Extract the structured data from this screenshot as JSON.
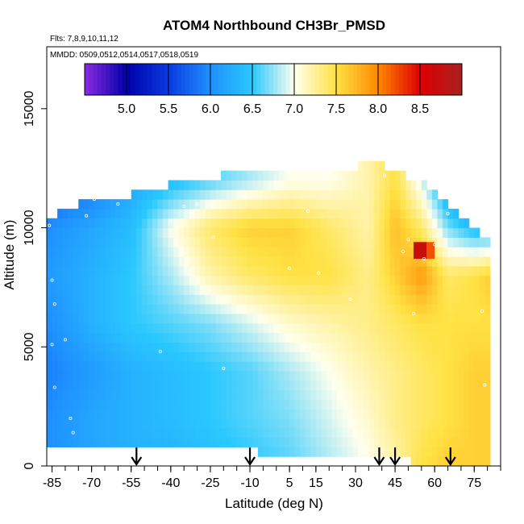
{
  "chart_data": {
    "type": "heatmap",
    "title": "ATOM4 Northbound CH3Br_PMSD",
    "subtitle_flights": "Flts: 7,8,9,10,11,12",
    "subtitle_dates": "MMDD: 0509,0512,0514,0517,0518,0519",
    "xlabel": "Latitude (deg N)",
    "ylabel": "Altitude (m)",
    "xlim": [
      -87,
      85
    ],
    "ylim": [
      0,
      17600
    ],
    "x_ticks": [
      -85,
      -70,
      -55,
      -40,
      -25,
      -10,
      5,
      15,
      30,
      45,
      60,
      75
    ],
    "y_ticks": [
      0,
      5000,
      10000,
      15000
    ],
    "colorbar": {
      "range": [
        4.5,
        9.0
      ],
      "tick_values": [
        5.0,
        5.5,
        6.0,
        6.5,
        7.0,
        7.5,
        8.0,
        8.5
      ],
      "tick_labels": [
        "5.0",
        "5.5",
        "6.0",
        "6.5",
        "7.0",
        "7.5",
        "8.0",
        "8.5"
      ],
      "stops": [
        {
          "v": 4.5,
          "color": "#8a2be2"
        },
        {
          "v": 5.0,
          "color": "#0000a8"
        },
        {
          "v": 5.5,
          "color": "#0a3ae0"
        },
        {
          "v": 6.0,
          "color": "#1f90ff"
        },
        {
          "v": 6.5,
          "color": "#2ac8ff"
        },
        {
          "v": 7.0,
          "color": "#ffffee"
        },
        {
          "v": 7.5,
          "color": "#ffe244"
        },
        {
          "v": 8.0,
          "color": "#ff8800"
        },
        {
          "v": 8.5,
          "color": "#dd0000"
        },
        {
          "v": 9.0,
          "color": "#a82020"
        }
      ]
    },
    "coverage": [
      {
        "lat": -86,
        "bottom": 1000,
        "top": 10400
      },
      {
        "lat": -75,
        "bottom": 1000,
        "top": 11000
      },
      {
        "lat": -65,
        "bottom": 1000,
        "top": 11300
      },
      {
        "lat": -55,
        "bottom": 1000,
        "top": 11400
      },
      {
        "lat": -45,
        "bottom": 1000,
        "top": 11700
      },
      {
        "lat": -35,
        "bottom": 1000,
        "top": 11900
      },
      {
        "lat": -25,
        "bottom": 1000,
        "top": 11900
      },
      {
        "lat": -15,
        "bottom": 1000,
        "top": 12500
      },
      {
        "lat": -5,
        "bottom": 500,
        "top": 12500
      },
      {
        "lat": 5,
        "bottom": 500,
        "top": 12500
      },
      {
        "lat": 15,
        "bottom": 500,
        "top": 12500
      },
      {
        "lat": 25,
        "bottom": 500,
        "top": 12200
      },
      {
        "lat": 35,
        "bottom": 400,
        "top": 12900
      },
      {
        "lat": 45,
        "bottom": 400,
        "top": 12300
      },
      {
        "lat": 55,
        "bottom": 100,
        "top": 12000
      },
      {
        "lat": 65,
        "bottom": 100,
        "top": 11100
      },
      {
        "lat": 72,
        "bottom": 100,
        "top": 10300
      },
      {
        "lat": 77,
        "bottom": 100,
        "top": 9700
      },
      {
        "lat": 80,
        "bottom": 100,
        "top": 9400
      }
    ],
    "field_nodes": {
      "alts": [
        0,
        2000,
        4000,
        6000,
        8000,
        10000,
        12000
      ],
      "lats": [
        -86,
        -70,
        -55,
        -40,
        -25,
        -10,
        5,
        20,
        35,
        45,
        55,
        65,
        75,
        80
      ],
      "values": [
        [
          6.0,
          6.2,
          6.3,
          6.3,
          6.4,
          6.5,
          6.6,
          6.8,
          7.0,
          7.2,
          7.5,
          7.6,
          7.6,
          7.6
        ],
        [
          6.0,
          6.2,
          6.3,
          6.4,
          6.5,
          6.6,
          6.7,
          6.9,
          7.1,
          7.3,
          7.4,
          7.5,
          7.6,
          7.6
        ],
        [
          5.9,
          6.1,
          6.3,
          6.4,
          6.5,
          6.6,
          6.8,
          7.0,
          7.2,
          7.3,
          7.4,
          7.5,
          7.6,
          7.6
        ],
        [
          6.0,
          6.3,
          6.5,
          6.6,
          6.7,
          6.9,
          7.1,
          7.2,
          7.3,
          7.4,
          7.5,
          7.5,
          7.5,
          7.5
        ],
        [
          6.1,
          6.3,
          6.5,
          6.8,
          7.2,
          7.4,
          7.5,
          7.5,
          7.3,
          7.6,
          7.9,
          7.4,
          7.5,
          7.6
        ],
        [
          6.0,
          6.2,
          6.4,
          7.0,
          7.4,
          7.6,
          7.6,
          7.4,
          7.2,
          7.7,
          7.4,
          6.7,
          6.4,
          6.4
        ],
        [
          5.6,
          5.8,
          6.2,
          6.4,
          6.6,
          6.8,
          7.0,
          7.0,
          7.2,
          7.5,
          6.9,
          6.1,
          5.5,
          5.5
        ]
      ]
    },
    "highlights": [
      {
        "lat_min": 52,
        "lat_max": 57,
        "alt_min": 8700,
        "alt_max": 9400,
        "value": 8.7
      },
      {
        "lat_min": 57,
        "lat_max": 60,
        "alt_min": 8700,
        "alt_max": 9400,
        "value": 8.2
      }
    ],
    "sample_points": [
      {
        "lat": -86,
        "alt": 10100
      },
      {
        "lat": -85,
        "alt": 7800
      },
      {
        "lat": -84,
        "alt": 6800
      },
      {
        "lat": -85,
        "alt": 5100
      },
      {
        "lat": -80,
        "alt": 5300
      },
      {
        "lat": -84,
        "alt": 3300
      },
      {
        "lat": -78,
        "alt": 2000
      },
      {
        "lat": -77,
        "alt": 1400
      },
      {
        "lat": -72,
        "alt": 10500
      },
      {
        "lat": -69,
        "alt": 11200
      },
      {
        "lat": -67,
        "alt": 11300
      },
      {
        "lat": -60,
        "alt": 11000
      },
      {
        "lat": -44,
        "alt": 4800
      },
      {
        "lat": -40,
        "alt": 10300
      },
      {
        "lat": -35,
        "alt": 10900
      },
      {
        "lat": -30,
        "alt": 11000
      },
      {
        "lat": -24,
        "alt": 9600
      },
      {
        "lat": -20,
        "alt": 4100
      },
      {
        "lat": 5,
        "alt": 8300
      },
      {
        "lat": 12,
        "alt": 10700
      },
      {
        "lat": 16,
        "alt": 8100
      },
      {
        "lat": 28,
        "alt": 7000
      },
      {
        "lat": 41,
        "alt": 12200
      },
      {
        "lat": 48,
        "alt": 9000
      },
      {
        "lat": 50,
        "alt": 9500
      },
      {
        "lat": 52,
        "alt": 6400
      },
      {
        "lat": 56,
        "alt": 8700
      },
      {
        "lat": 60,
        "alt": 9300
      },
      {
        "lat": 65,
        "alt": 10600
      },
      {
        "lat": 68,
        "alt": 11100
      },
      {
        "lat": 70,
        "alt": 10800
      },
      {
        "lat": 74,
        "alt": 9000
      },
      {
        "lat": 79,
        "alt": 3400
      },
      {
        "lat": 78,
        "alt": 6500
      }
    ],
    "arrow_latitudes": [
      -53,
      -10,
      39,
      45,
      66
    ]
  }
}
